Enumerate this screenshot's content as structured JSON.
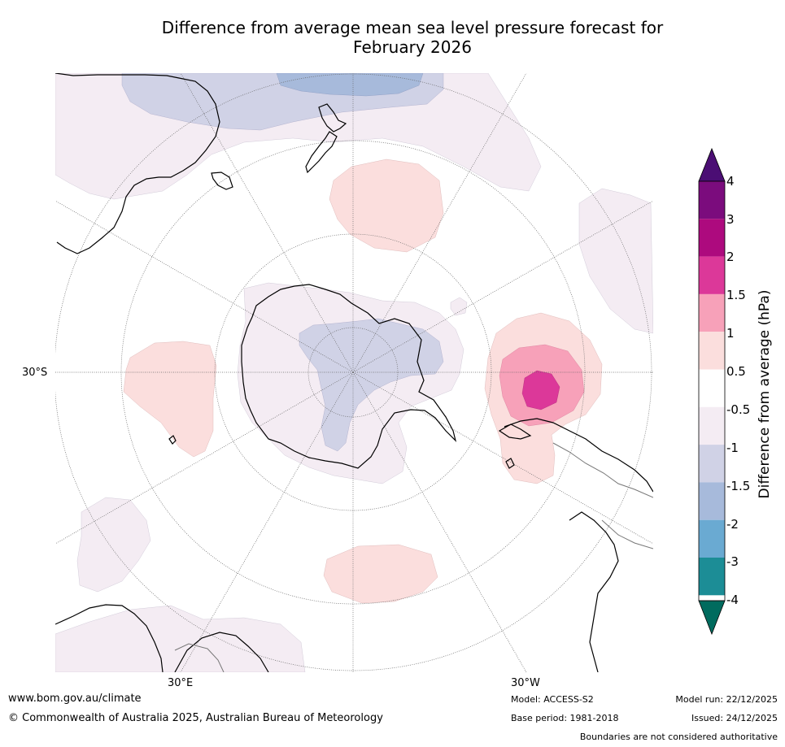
{
  "title": {
    "line1": "Difference from average mean sea level pressure forecast for",
    "line2": "February 2026"
  },
  "map": {
    "projection": "south polar stereographic",
    "labels": {
      "lat_30s": "30°S",
      "lon_30e": "30°E",
      "lon_30w": "30°W"
    },
    "colors": {
      "ocean": "#ffffff",
      "coast": "#000000",
      "border": "#777777",
      "grid": "#666666"
    }
  },
  "colorbar": {
    "title": "Difference from average (hPa)",
    "ticks": [
      "4",
      "3",
      "2",
      "1.5",
      "1",
      "0.5",
      "-0.5",
      "-1",
      "-1.5",
      "-2",
      "-3",
      "-4"
    ],
    "colors": [
      "#4b0e74",
      "#7b0c7d",
      "#ad0a7e",
      "#dc3899",
      "#f7a1b9",
      "#fbdedd",
      "#ffffff",
      "#f4ecf3",
      "#d0d2e6",
      "#a7badb",
      "#6aaad2",
      "#1c8d96",
      "#006b5e"
    ]
  },
  "footer": {
    "website": "www.bom.gov.au/climate",
    "copyright": "© Commonwealth of Australia 2025, Australian Bureau of Meteorology",
    "model": "Model: ACCESS-S2",
    "base_period": "Base period: 1981-2018",
    "model_run": "Model run: 22/12/2025",
    "issued": "Issued: 24/12/2025",
    "disclaimer": "Boundaries are not considered authoritative"
  }
}
